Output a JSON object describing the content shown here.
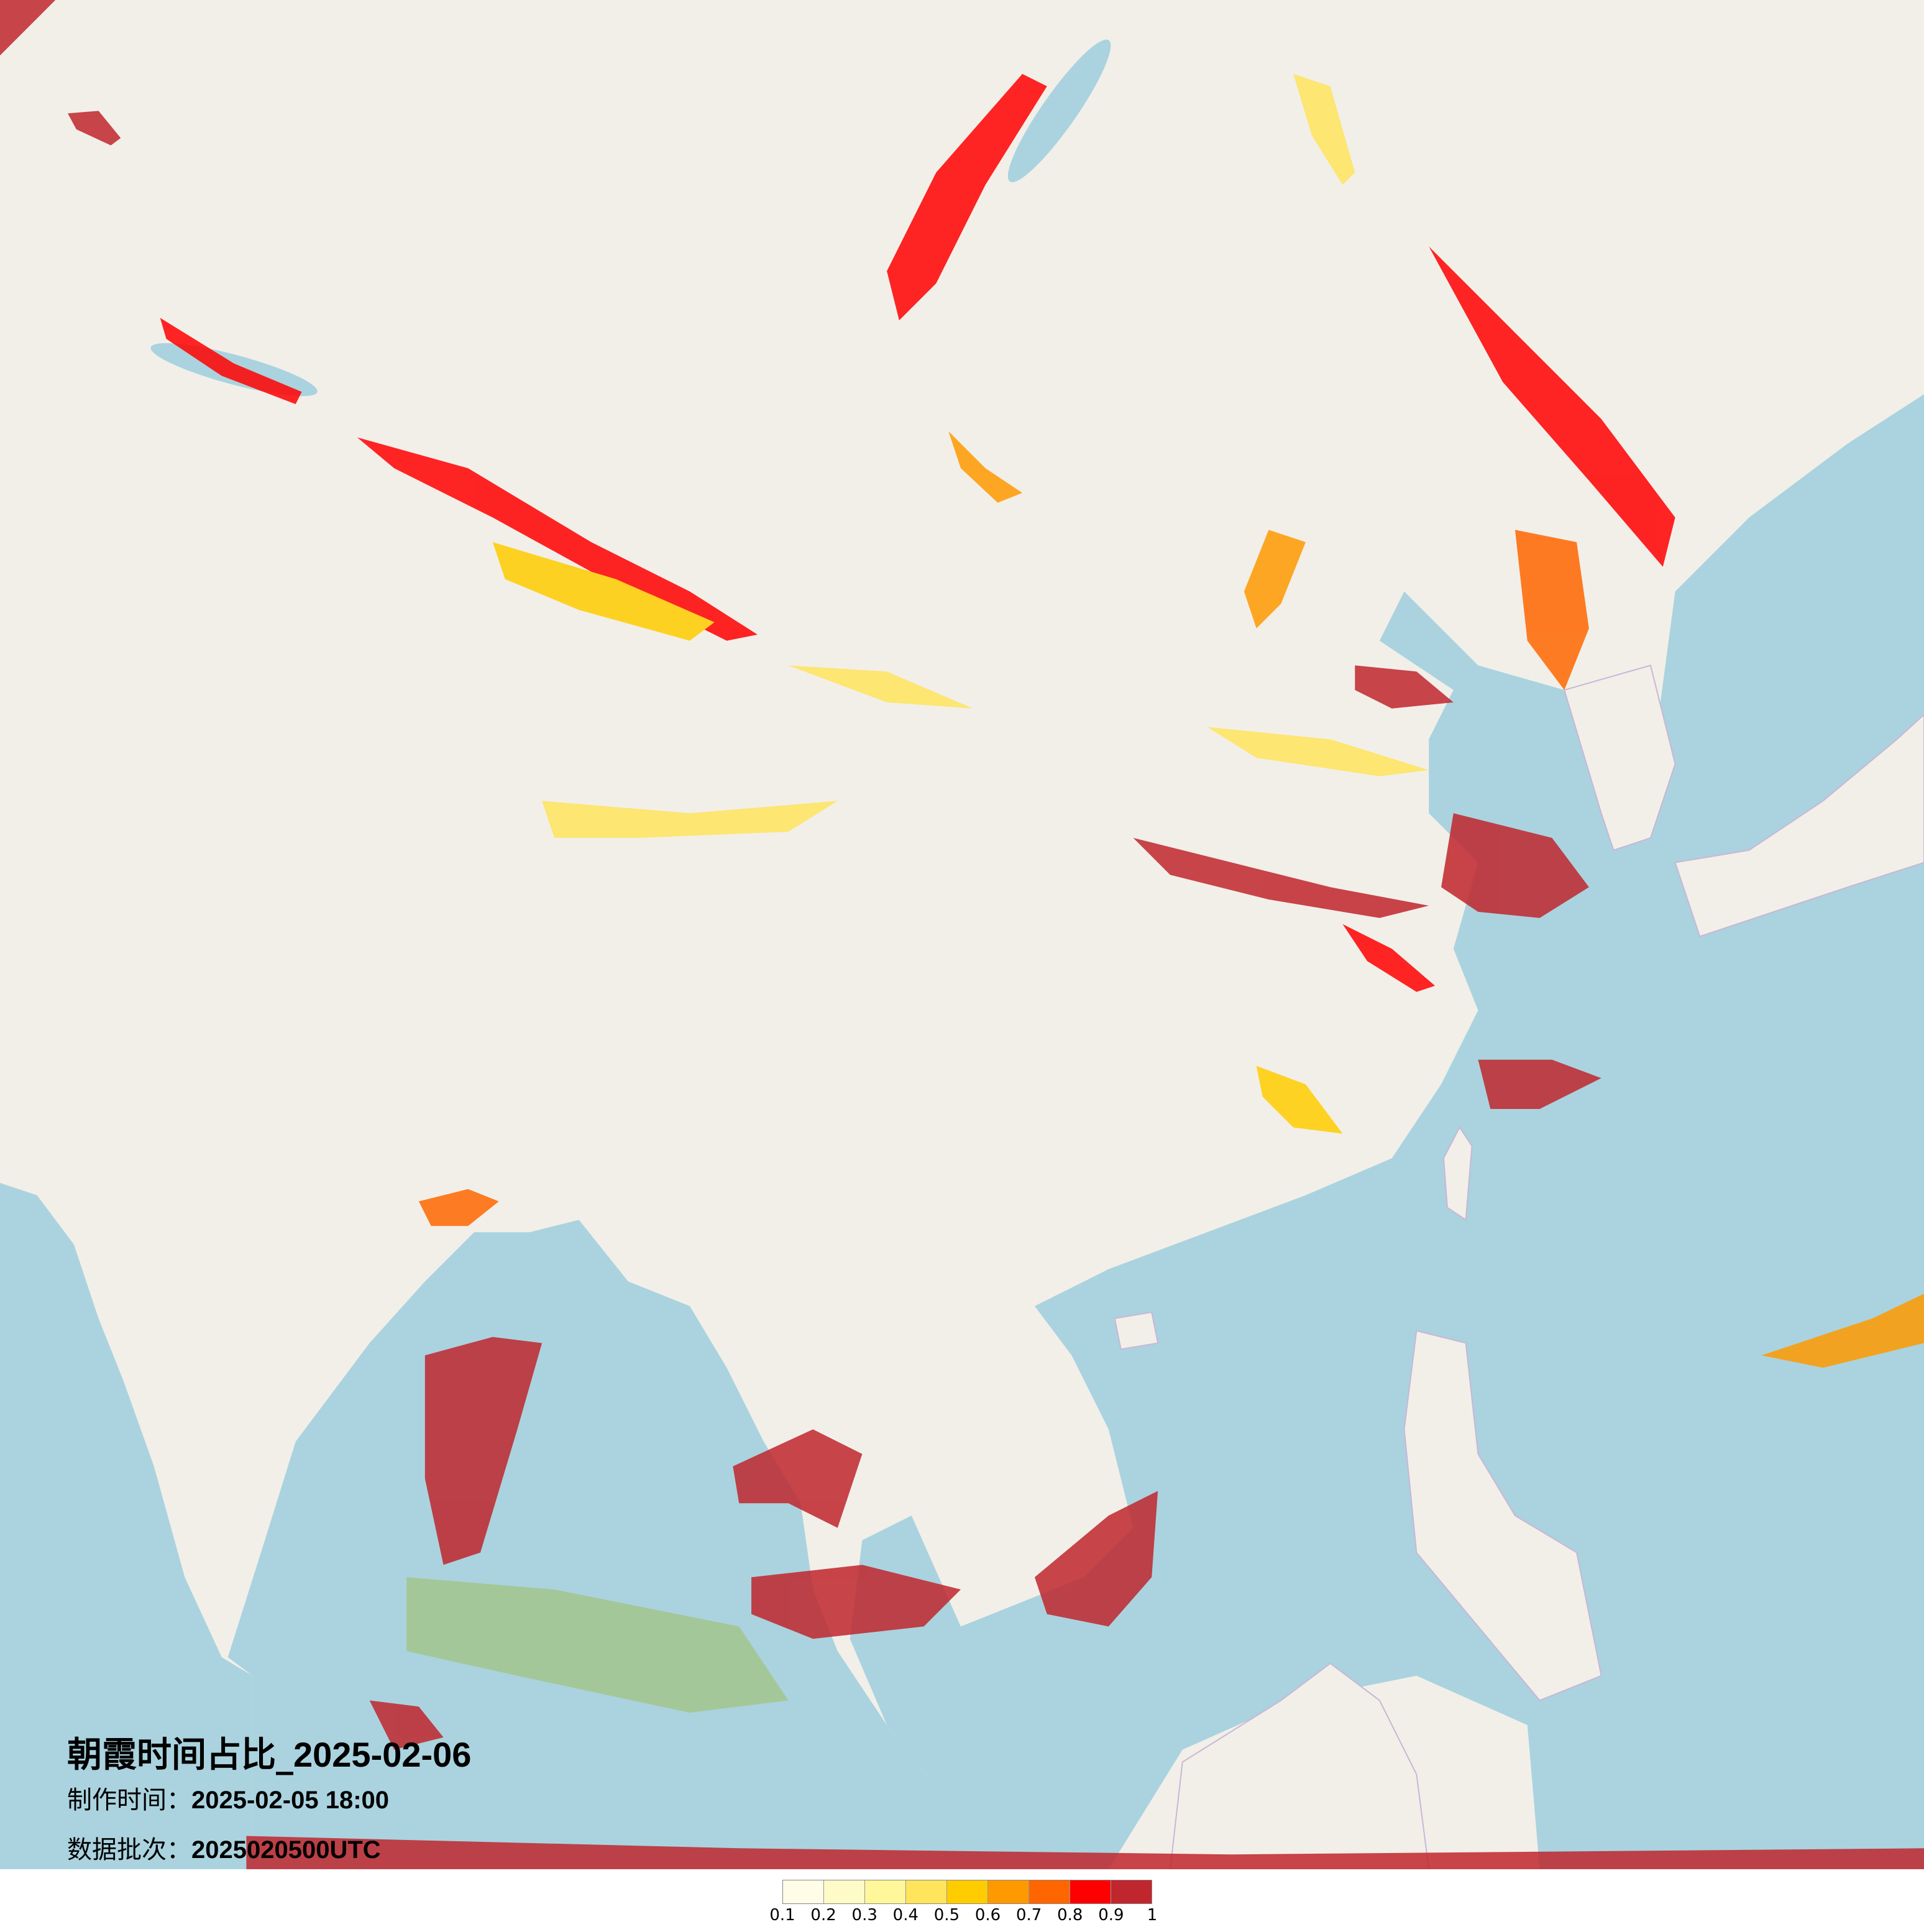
{
  "title": {
    "prefix": "朝霞时间占比_",
    "date": "2025-02-06"
  },
  "meta": {
    "made_label": "制作时间：",
    "made_value": "2025-02-05 18:00",
    "batch_label": "数据批次：",
    "batch_value": "2025020500UTC"
  },
  "legend": {
    "ticks": [
      "0.1",
      "0.2",
      "0.3",
      "0.4",
      "0.5",
      "0.6",
      "0.7",
      "0.8",
      "0.9",
      "1"
    ],
    "colors": [
      "#fffde8",
      "#fffbc8",
      "#fff799",
      "#ffe45c",
      "#ffcc00",
      "#ff9900",
      "#ff6600",
      "#ff0000",
      "#c0262d"
    ]
  },
  "map_colors": {
    "land": "#f2efe9",
    "ocean": "#aad3df",
    "border": "#c9b6d6"
  }
}
